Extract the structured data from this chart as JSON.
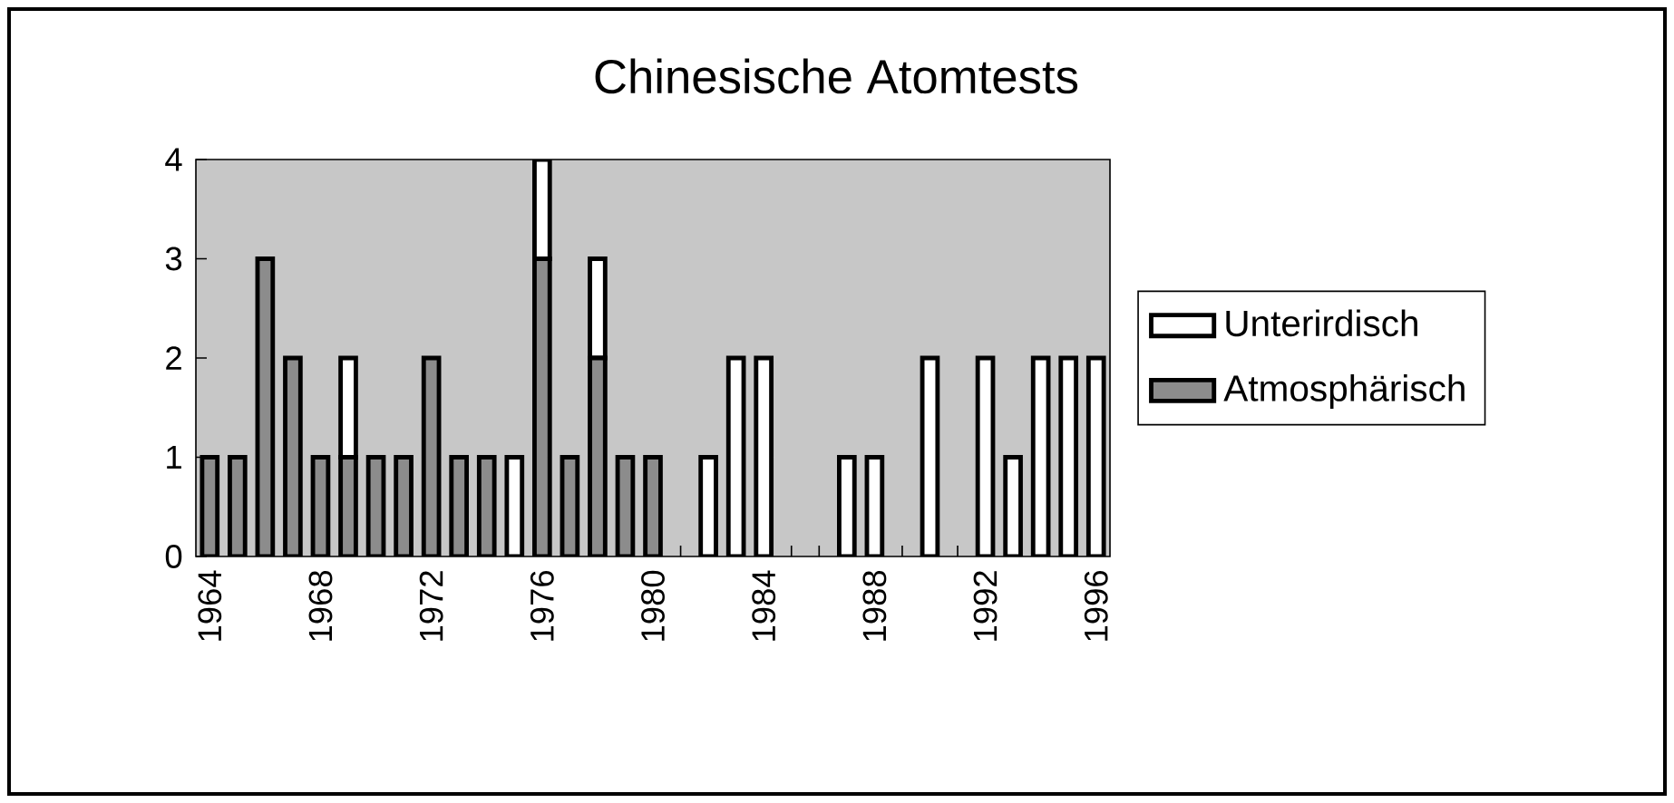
{
  "chart_data": {
    "type": "bar",
    "title": "Chinesische Atomtests",
    "categories": [
      "1964",
      null,
      null,
      null,
      "1968",
      null,
      null,
      null,
      "1972",
      null,
      null,
      null,
      "1976",
      null,
      null,
      null,
      "1980",
      null,
      null,
      null,
      "1984",
      null,
      null,
      null,
      "1988",
      null,
      null,
      null,
      "1992",
      null,
      null,
      null,
      "1996"
    ],
    "stacked": true,
    "series": [
      {
        "name": "Atmosphärisch",
        "color": "#8c8c8c",
        "values": [
          1,
          1,
          3,
          2,
          1,
          1,
          1,
          1,
          2,
          1,
          1,
          0,
          3,
          1,
          2,
          1,
          1,
          0,
          0,
          0,
          0,
          0,
          0,
          0,
          0,
          0,
          0,
          0,
          0,
          0,
          0,
          0,
          0
        ]
      },
      {
        "name": "Unterirdisch",
        "color": "#ffffff",
        "values": [
          0,
          0,
          0,
          0,
          0,
          1,
          0,
          0,
          0,
          0,
          0,
          1,
          1,
          0,
          1,
          0,
          0,
          0,
          1,
          2,
          2,
          0,
          0,
          1,
          1,
          0,
          2,
          0,
          2,
          1,
          2,
          2,
          2
        ]
      }
    ],
    "ylim": [
      0,
      4
    ],
    "yticks": [
      0,
      1,
      2,
      3,
      4
    ],
    "grid": false,
    "legend": "right"
  }
}
